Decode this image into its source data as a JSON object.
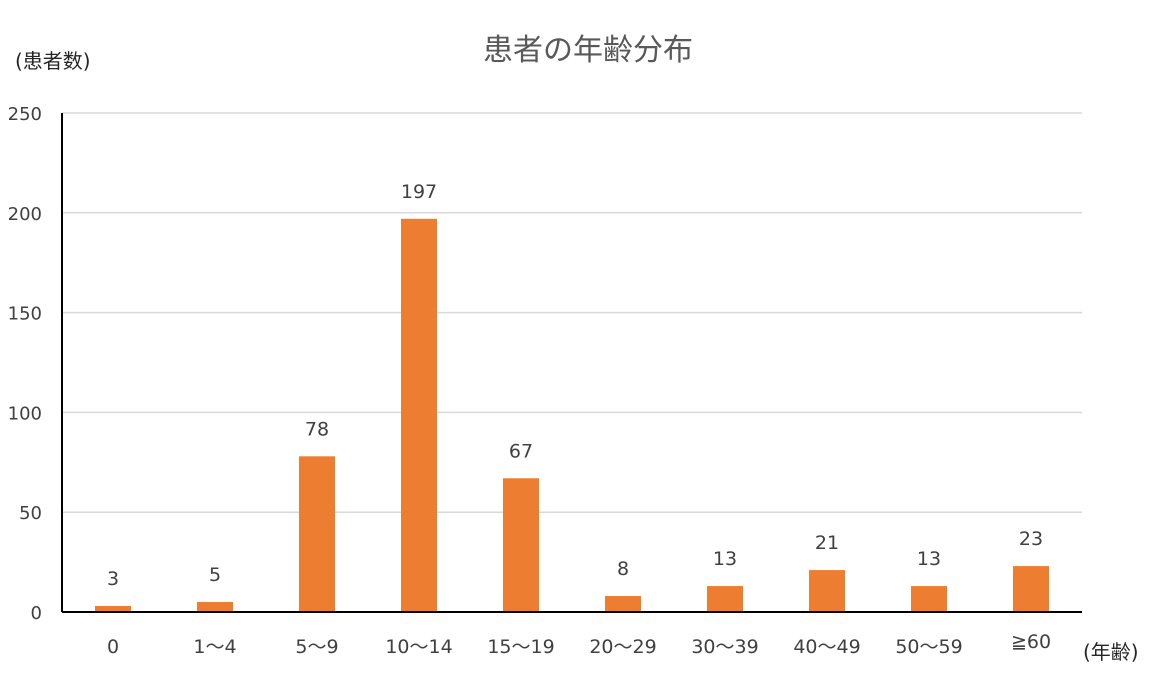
{
  "chart_data": {
    "type": "bar",
    "title": "患者の年齢分布",
    "ylabel": "(患者数)",
    "xlabel": "(年齢)",
    "categories": [
      "0",
      "1～4",
      "5～9",
      "10～14",
      "15～19",
      "20～29",
      "30～39",
      "40～49",
      "50～59",
      "≧60"
    ],
    "values": [
      3,
      5,
      78,
      197,
      67,
      8,
      13,
      21,
      13,
      23
    ],
    "ylim": [
      0,
      250
    ],
    "yticks": [
      0,
      50,
      100,
      150,
      200,
      250
    ],
    "grid": true,
    "bar_color": "#ED7D31",
    "data_labels": true
  }
}
